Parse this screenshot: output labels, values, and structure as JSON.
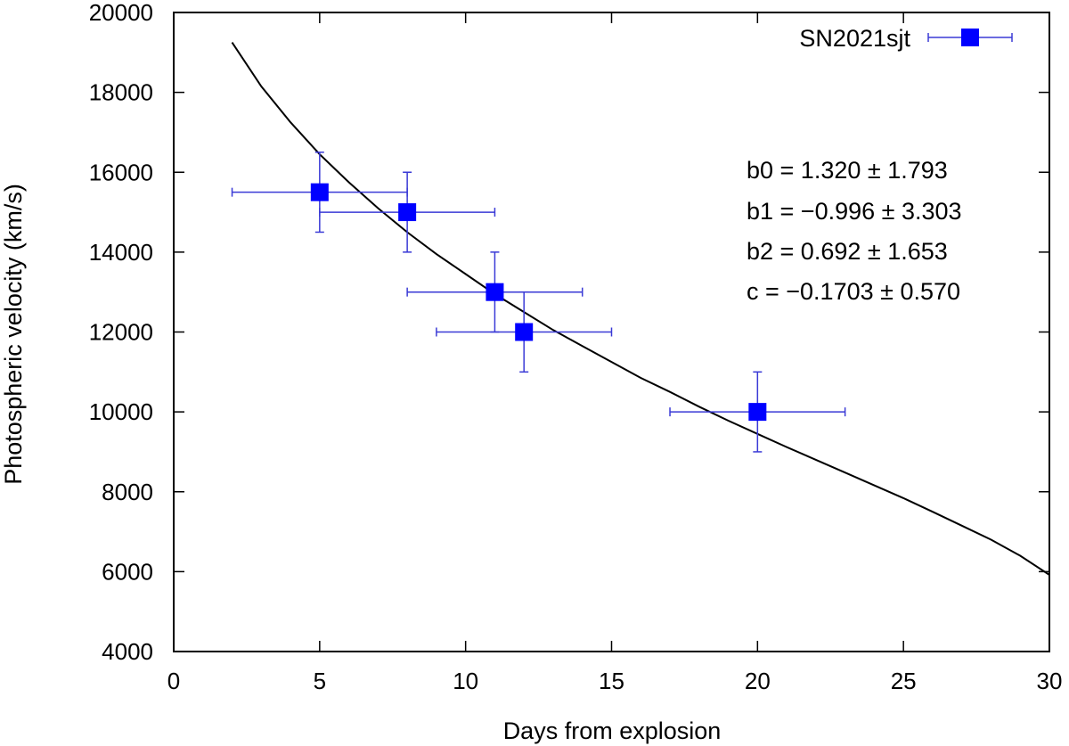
{
  "chart_data": {
    "type": "scatter",
    "xlabel": "Days from explosion",
    "ylabel": "Photospheric velocity (km/s)",
    "xlim": [
      0,
      30
    ],
    "ylim": [
      4000,
      20000
    ],
    "x_ticks": [
      0,
      5,
      10,
      15,
      20,
      25,
      30
    ],
    "y_ticks": [
      4000,
      6000,
      8000,
      10000,
      12000,
      14000,
      16000,
      18000,
      20000
    ],
    "grid": false,
    "legend_position": "top-right",
    "series": [
      {
        "name": "SN2021sjt",
        "marker": "square",
        "points": [
          {
            "x": 5,
            "y": 15500,
            "xerr": 3,
            "yerr": 1000
          },
          {
            "x": 8,
            "y": 15000,
            "xerr": 3,
            "yerr": 1000
          },
          {
            "x": 11,
            "y": 13000,
            "xerr": 3,
            "yerr": 1000
          },
          {
            "x": 12,
            "y": 12000,
            "xerr": 3,
            "yerr": 1000
          },
          {
            "x": 20,
            "y": 10000,
            "xerr": 3,
            "yerr": 1000
          }
        ]
      }
    ],
    "fit_curve": [
      [
        2,
        19250
      ],
      [
        3,
        18150
      ],
      [
        4,
        17250
      ],
      [
        5,
        16450
      ],
      [
        6,
        15750
      ],
      [
        7,
        15100
      ],
      [
        8,
        14500
      ],
      [
        9,
        13950
      ],
      [
        10,
        13450
      ],
      [
        11,
        12950
      ],
      [
        12,
        12500
      ],
      [
        13,
        12050
      ],
      [
        14,
        11650
      ],
      [
        15,
        11250
      ],
      [
        16,
        10850
      ],
      [
        17,
        10500
      ],
      [
        18,
        10130
      ],
      [
        19,
        9780
      ],
      [
        20,
        9450
      ],
      [
        21,
        9120
      ],
      [
        22,
        8800
      ],
      [
        23,
        8480
      ],
      [
        24,
        8160
      ],
      [
        25,
        7840
      ],
      [
        26,
        7500
      ],
      [
        27,
        7150
      ],
      [
        28,
        6800
      ],
      [
        29,
        6400
      ],
      [
        30,
        5920
      ]
    ],
    "annotations": [
      "b0 = 1.320 ± 1.793",
      "b1 = −0.996 ± 3.303",
      "b2 = 0.692 ± 1.653",
      "c = −0.1703 ± 0.570"
    ],
    "colors": {
      "series": "#0000ff",
      "errorbar": "#3a3ad6",
      "fit": "#000000",
      "axes": "#000000"
    }
  }
}
